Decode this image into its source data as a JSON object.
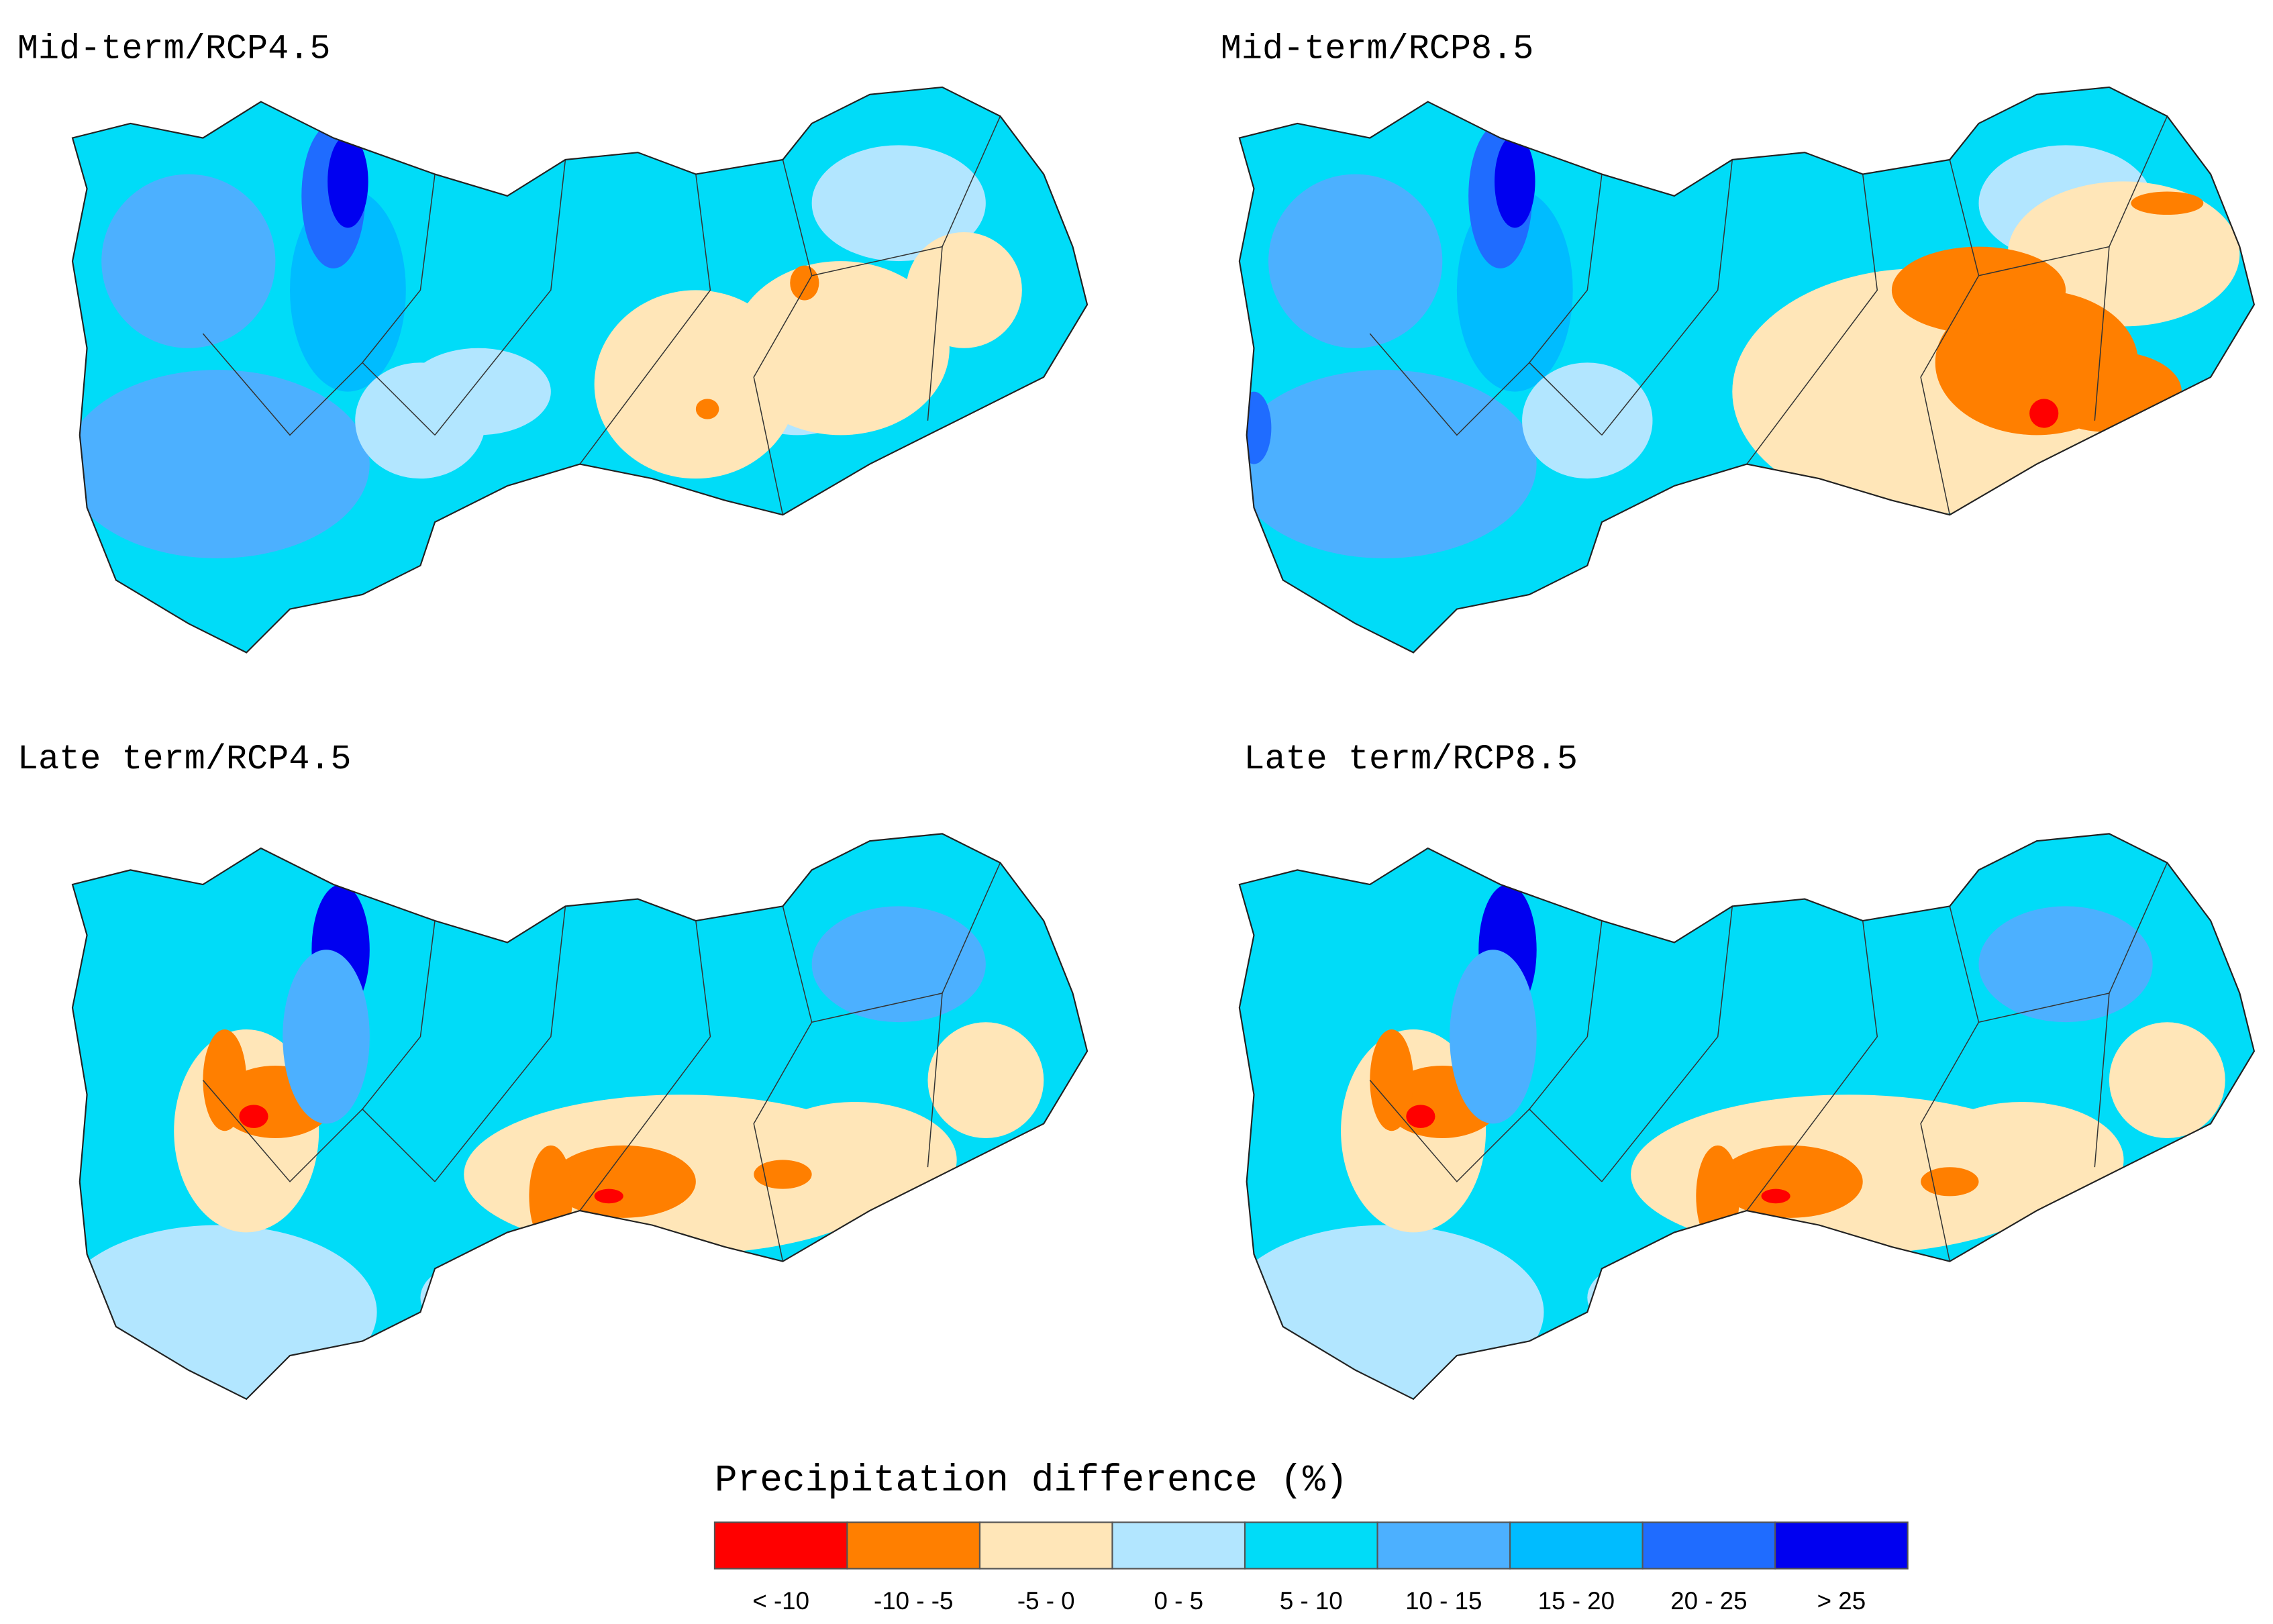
{
  "panels": [
    {
      "title": "Mid-term/RCP4.5"
    },
    {
      "title": "Mid-term/RCP8.5"
    },
    {
      "title": "Late term/RCP4.5"
    },
    {
      "title": "Late term/RCP8.5"
    }
  ],
  "legend": {
    "title": "Precipitation difference (%)",
    "bins": [
      {
        "label": "< -10",
        "color": "#ff0000"
      },
      {
        "label": "-10 - -5",
        "color": "#ff7f00"
      },
      {
        "label": "-5 - 0",
        "color": "#ffe6b8"
      },
      {
        "label": "0 - 5",
        "color": "#b2e6ff"
      },
      {
        "label": "5 - 10",
        "color": "#00dcf8"
      },
      {
        "label": "10 - 15",
        "color": "#4cb0ff"
      },
      {
        "label": "15 - 20",
        "color": "#00bcff"
      },
      {
        "label": "20 - 25",
        "color": "#1f6cff"
      },
      {
        "label": "> 25",
        "color": "#0000f0"
      }
    ]
  }
}
